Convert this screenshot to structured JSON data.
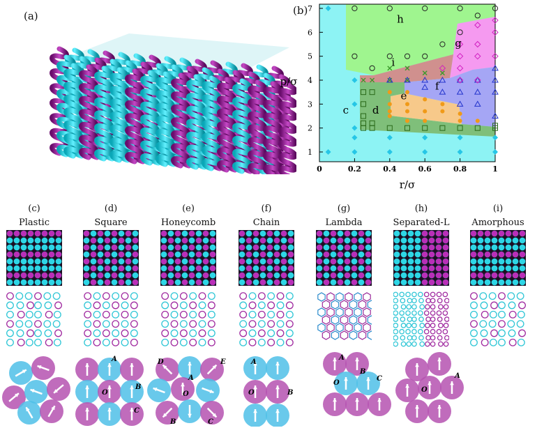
{
  "figure": {
    "panel_letters": {
      "a": "(a)",
      "b": "(b)"
    },
    "phase_diagram": {
      "xlabel": "r/σ",
      "ylabel": "p/σ",
      "x_ticks": [
        "0",
        "0.2",
        "0.4",
        "0.6",
        "0.8",
        "1"
      ],
      "y_ticks": [
        "1",
        "2",
        "3",
        "4",
        "5",
        "6",
        "7"
      ],
      "region_labels": [
        "c",
        "d",
        "e",
        "f",
        "g",
        "h",
        "i"
      ],
      "colors": {
        "plastic": "#8df3f4",
        "square": "#7fbf7a",
        "honeycomb": "#f7c98a",
        "chain": "#a5a6f5",
        "lambda": "#f59af0",
        "separated": "#9ff58f",
        "amorphous": "#d0908e"
      }
    },
    "columns": [
      {
        "letter": "(c)",
        "title": "Plastic"
      },
      {
        "letter": "(d)",
        "title": "Square"
      },
      {
        "letter": "(e)",
        "title": "Honeycomb"
      },
      {
        "letter": "(f)",
        "title": "Chain"
      },
      {
        "letter": "(g)",
        "title": "Lambda"
      },
      {
        "letter": "(h)",
        "title": "Separated-L"
      },
      {
        "letter": "(i)",
        "title": "Amorphous"
      }
    ],
    "schematic_labels": {
      "d": [
        "A",
        "B",
        "C",
        "O"
      ],
      "e": [
        "D",
        "A",
        "E",
        "O",
        "B",
        "C"
      ],
      "f": [
        "A",
        "O",
        "B"
      ],
      "g": [
        "A",
        "B",
        "O",
        "C"
      ],
      "h": [
        "A",
        "O"
      ]
    }
  }
}
